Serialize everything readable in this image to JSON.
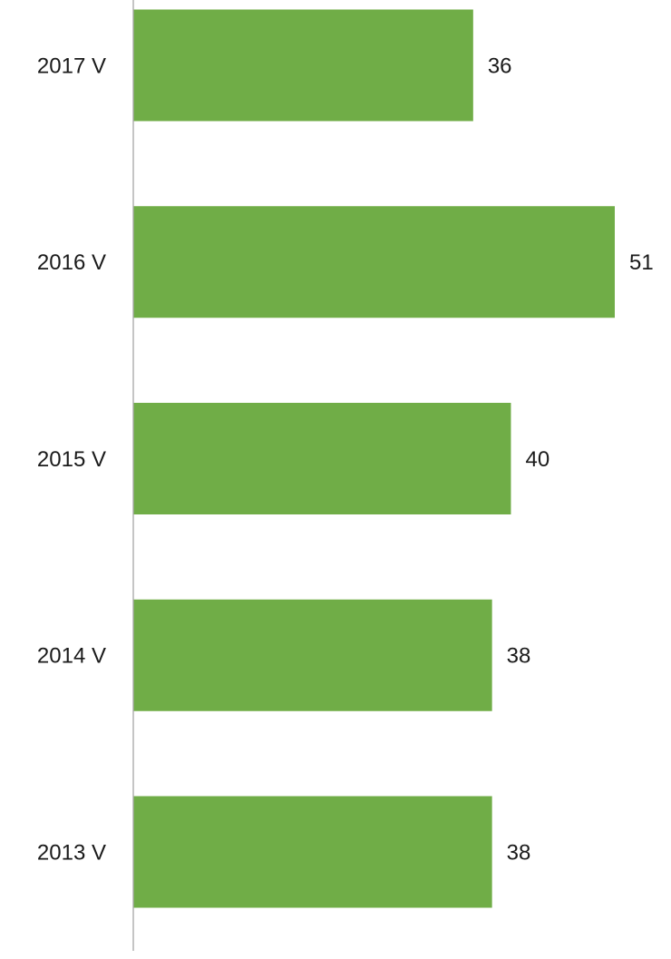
{
  "chart_data": {
    "type": "bar",
    "orientation": "horizontal",
    "categories": [
      "2017 V",
      "2016 V",
      "2015 V",
      "2014 V",
      "2013 V"
    ],
    "values": [
      36,
      51,
      40,
      38,
      38
    ],
    "color": "#70ad47"
  }
}
